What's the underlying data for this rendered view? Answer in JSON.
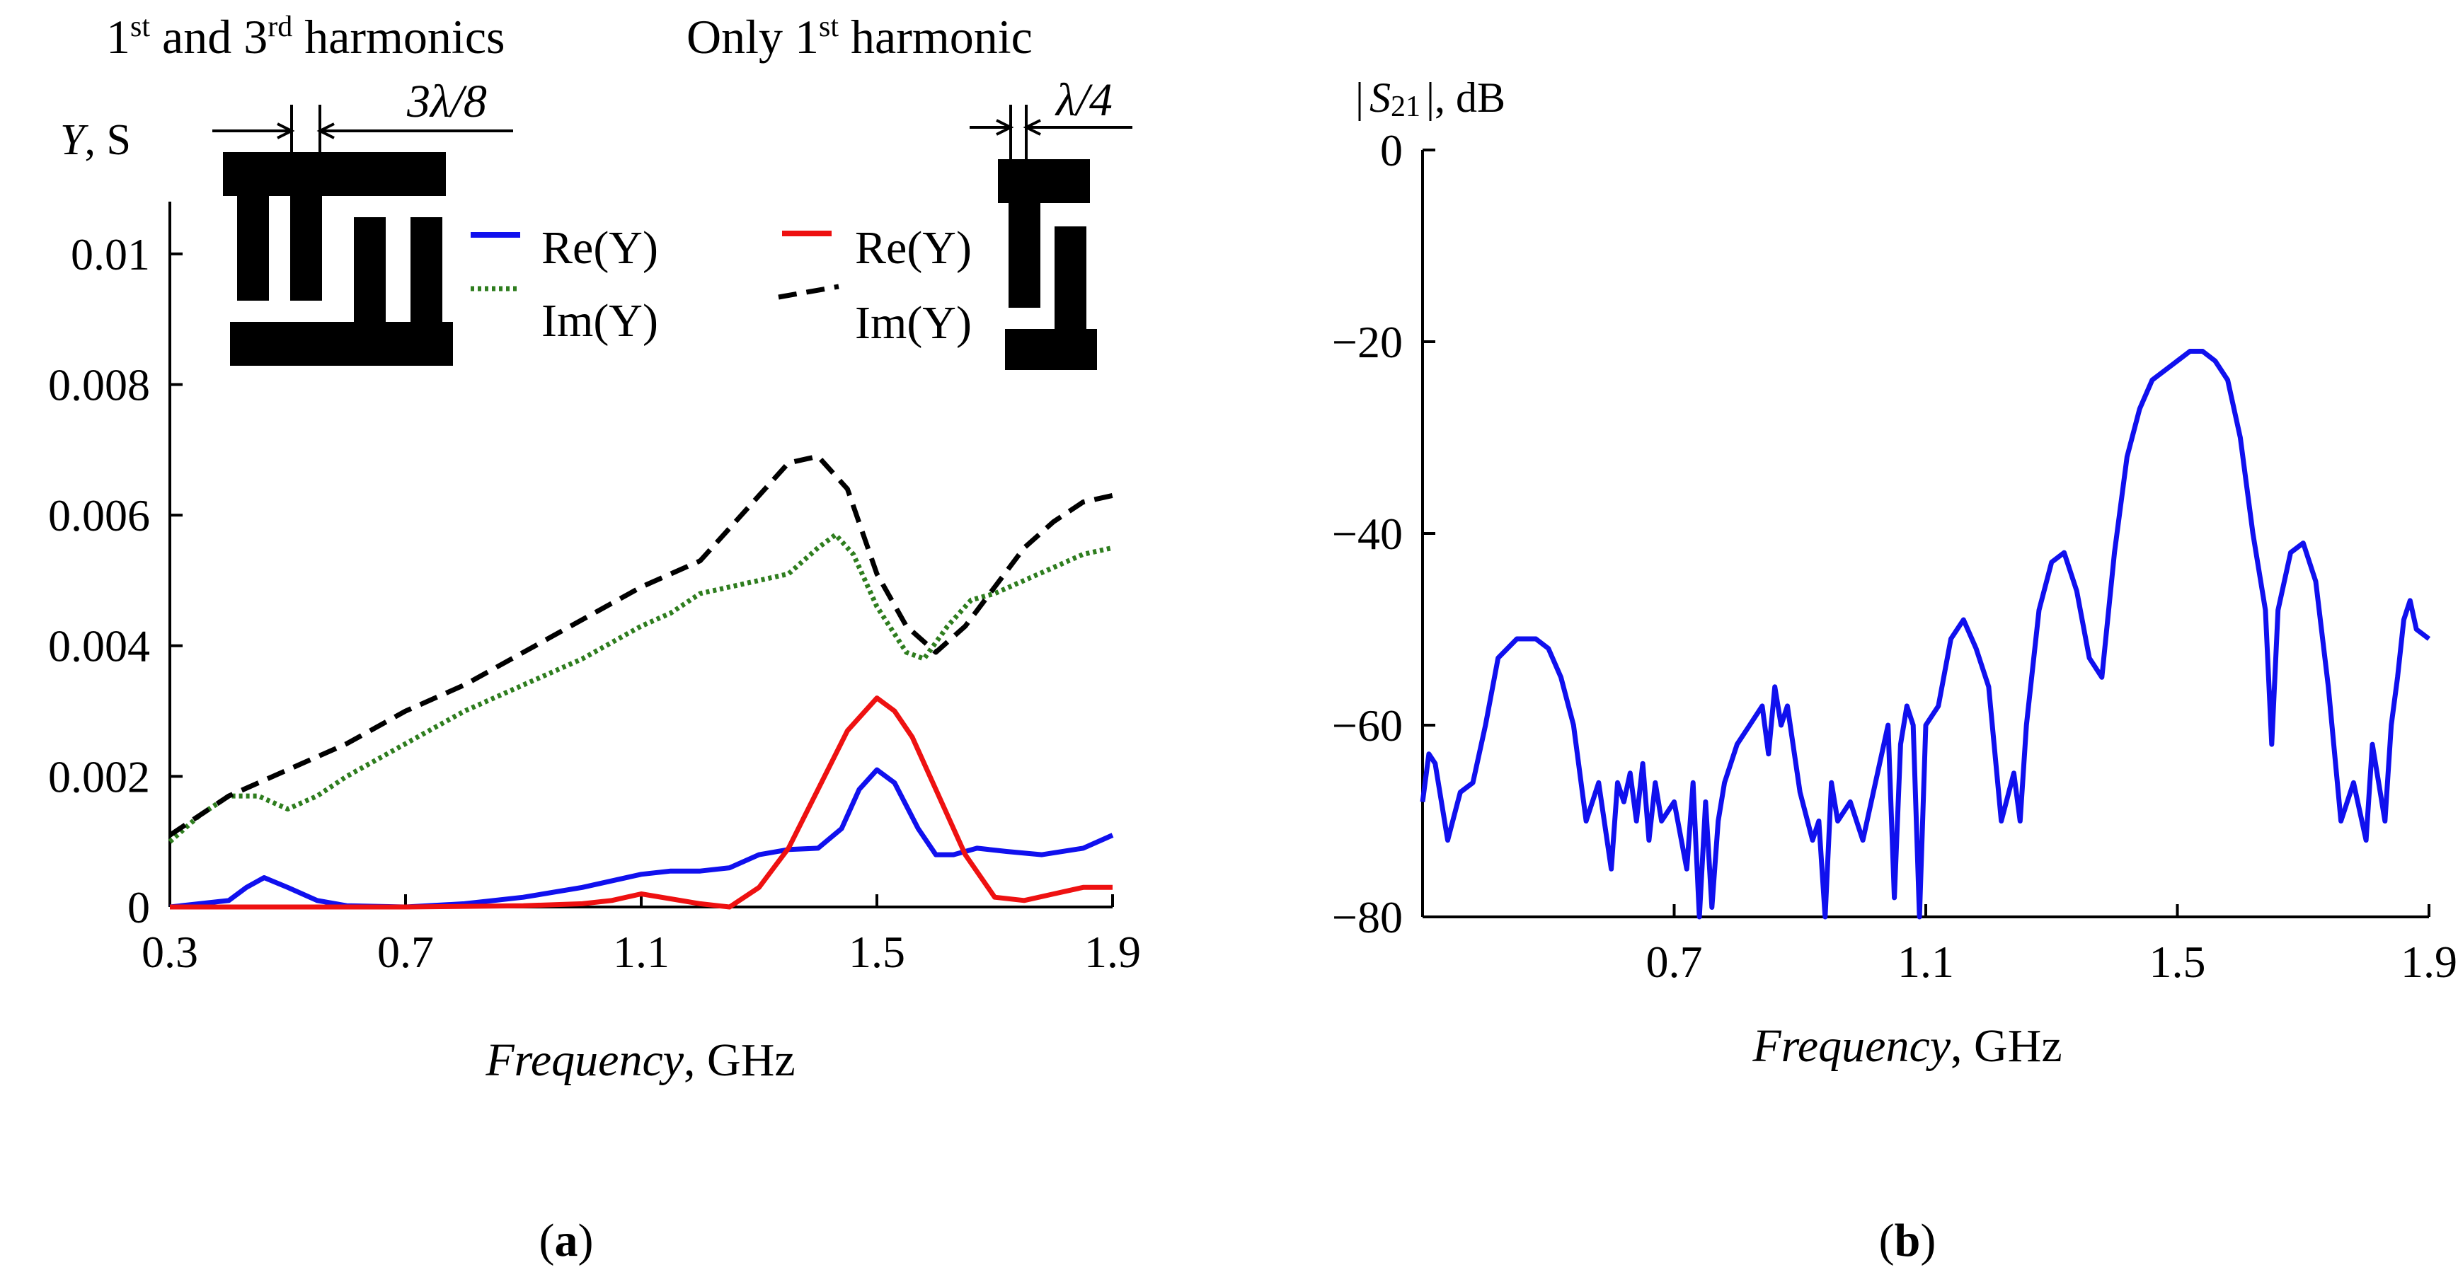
{
  "colors": {
    "re_stripe": "#1010ee",
    "im_stripe": "#2e7d1e",
    "re_quarter": "#ee1111",
    "im_quarter": "#000000",
    "s21": "#1010ee"
  },
  "chart_data": [
    {
      "type": "line",
      "panel_label_open": "(",
      "panel_label": "a",
      "panel_label_close": ")",
      "ylabel_sym": "Y",
      "ylabel_unit": ", S",
      "xlabel_italic": "Frequency",
      "xlabel_unit": ", GHz",
      "xlim": [
        0.3,
        1.9
      ],
      "ylim": [
        0,
        0.0108
      ],
      "xticks": [
        0.3,
        0.7,
        1.1,
        1.5,
        1.9
      ],
      "xtick_labels": [
        "0.3",
        "0.7",
        "1.1",
        "1.5",
        "1.9"
      ],
      "yticks": [
        0,
        0.002,
        0.004,
        0.006,
        0.008,
        0.01
      ],
      "ytick_labels": [
        "0",
        "0.002",
        "0.004",
        "0.006",
        "0.008",
        "0.01"
      ],
      "inset_left": {
        "title_a": "1",
        "title_a_sup": "st",
        "title_b": " and 3",
        "title_b_sup": "rd",
        "title_c": " harmonics",
        "dim_label": "3λ/8"
      },
      "inset_right": {
        "title_a": "Only 1",
        "title_a_sup": "st",
        "title_b": " harmonic",
        "dim_label": "λ/4"
      },
      "legend": [
        {
          "label": "Re(Y)",
          "style": "solid",
          "color_key": "re_stripe"
        },
        {
          "label": "Im(Y)",
          "style": "dotted",
          "color_key": "im_stripe"
        },
        {
          "label": "Re(Y)",
          "style": "solid",
          "color_key": "re_quarter"
        },
        {
          "label": "Im(Y)",
          "style": "dashed",
          "color_key": "im_quarter"
        }
      ],
      "series": [
        {
          "name": "Re(Y) 1st and 3rd harmonics",
          "color_key": "re_stripe",
          "style": "solid",
          "x": [
            0.3,
            0.4,
            0.43,
            0.46,
            0.5,
            0.55,
            0.6,
            0.7,
            0.8,
            0.9,
            1.0,
            1.05,
            1.1,
            1.15,
            1.2,
            1.25,
            1.3,
            1.35,
            1.4,
            1.44,
            1.47,
            1.5,
            1.53,
            1.57,
            1.6,
            1.63,
            1.67,
            1.72,
            1.78,
            1.85,
            1.9
          ],
          "y": [
            0.0,
            0.0001,
            0.0003,
            0.00045,
            0.0003,
            0.0001,
            2e-05,
            0.0,
            5e-05,
            0.00015,
            0.0003,
            0.0004,
            0.0005,
            0.00055,
            0.00055,
            0.0006,
            0.0008,
            0.00088,
            0.0009,
            0.0012,
            0.0018,
            0.0021,
            0.0019,
            0.0012,
            0.0008,
            0.0008,
            0.0009,
            0.00085,
            0.0008,
            0.0009,
            0.0011
          ]
        },
        {
          "name": "Im(Y) 1st and 3rd harmonics",
          "color_key": "im_stripe",
          "style": "dotted",
          "x": [
            0.3,
            0.35,
            0.4,
            0.45,
            0.5,
            0.55,
            0.6,
            0.7,
            0.8,
            0.9,
            1.0,
            1.1,
            1.15,
            1.2,
            1.25,
            1.3,
            1.35,
            1.4,
            1.43,
            1.46,
            1.5,
            1.55,
            1.58,
            1.62,
            1.66,
            1.7,
            1.75,
            1.8,
            1.85,
            1.9
          ],
          "y": [
            0.001,
            0.0014,
            0.0017,
            0.0017,
            0.0015,
            0.0017,
            0.002,
            0.0025,
            0.003,
            0.0034,
            0.0038,
            0.0043,
            0.0045,
            0.0048,
            0.0049,
            0.005,
            0.0051,
            0.0055,
            0.0057,
            0.0054,
            0.0046,
            0.0039,
            0.0038,
            0.0043,
            0.0047,
            0.0048,
            0.005,
            0.0052,
            0.0054,
            0.0055
          ]
        },
        {
          "name": "Re(Y) only 1st harmonic",
          "color_key": "re_quarter",
          "style": "solid",
          "x": [
            0.3,
            0.5,
            0.7,
            0.9,
            1.0,
            1.05,
            1.1,
            1.2,
            1.25,
            1.3,
            1.35,
            1.4,
            1.45,
            1.5,
            1.53,
            1.56,
            1.6,
            1.65,
            1.7,
            1.75,
            1.8,
            1.85,
            1.9
          ],
          "y": [
            0.0,
            0.0,
            0.0,
            2e-05,
            5e-05,
            0.0001,
            0.0002,
            5e-05,
            0.0,
            0.0003,
            0.0009,
            0.0018,
            0.0027,
            0.0032,
            0.003,
            0.0026,
            0.0018,
            0.0008,
            0.00015,
            0.0001,
            0.0002,
            0.0003,
            0.0003
          ]
        },
        {
          "name": "Im(Y) only 1st harmonic",
          "color_key": "im_quarter",
          "style": "dashed",
          "x": [
            0.3,
            0.35,
            0.4,
            0.5,
            0.6,
            0.7,
            0.8,
            0.9,
            1.0,
            1.1,
            1.2,
            1.3,
            1.35,
            1.4,
            1.45,
            1.5,
            1.55,
            1.6,
            1.65,
            1.7,
            1.75,
            1.8,
            1.85,
            1.9
          ],
          "y": [
            0.0011,
            0.0014,
            0.0017,
            0.0021,
            0.0025,
            0.003,
            0.0034,
            0.0039,
            0.0044,
            0.0049,
            0.0053,
            0.0063,
            0.0068,
            0.0069,
            0.0064,
            0.0051,
            0.0043,
            0.0039,
            0.0043,
            0.0049,
            0.0055,
            0.0059,
            0.0062,
            0.0063
          ]
        }
      ]
    },
    {
      "type": "line",
      "panel_label_open": "(",
      "panel_label": "b",
      "panel_label_close": ")",
      "ylabel_pre": "|",
      "ylabel_sym": "S",
      "ylabel_sub": "21",
      "ylabel_post": "|, dB",
      "xlabel_italic": "Frequency",
      "xlabel_unit": ", GHz",
      "xlim": [
        0.3,
        1.9
      ],
      "ylim": [
        -80,
        0
      ],
      "xticks": [
        0.7,
        1.1,
        1.5,
        1.9
      ],
      "xtick_labels": [
        "0.7",
        "1.1",
        "1.5",
        "1.9"
      ],
      "yticks": [
        0,
        -20,
        -40,
        -60,
        -80
      ],
      "ytick_labels": [
        "0",
        "−20",
        "−40",
        "−60",
        "−80"
      ],
      "series": [
        {
          "name": "|S21|",
          "color_key": "s21",
          "style": "solid",
          "x": [
            0.3,
            0.31,
            0.32,
            0.34,
            0.36,
            0.38,
            0.4,
            0.42,
            0.45,
            0.48,
            0.5,
            0.52,
            0.54,
            0.56,
            0.58,
            0.6,
            0.61,
            0.62,
            0.63,
            0.64,
            0.65,
            0.66,
            0.67,
            0.68,
            0.7,
            0.72,
            0.73,
            0.74,
            0.75,
            0.76,
            0.77,
            0.78,
            0.8,
            0.82,
            0.84,
            0.85,
            0.86,
            0.87,
            0.88,
            0.9,
            0.92,
            0.93,
            0.94,
            0.95,
            0.96,
            0.98,
            1.0,
            1.02,
            1.04,
            1.05,
            1.06,
            1.07,
            1.08,
            1.09,
            1.1,
            1.12,
            1.14,
            1.16,
            1.18,
            1.2,
            1.22,
            1.24,
            1.25,
            1.26,
            1.28,
            1.3,
            1.32,
            1.34,
            1.36,
            1.38,
            1.4,
            1.42,
            1.44,
            1.46,
            1.48,
            1.5,
            1.52,
            1.54,
            1.56,
            1.58,
            1.6,
            1.62,
            1.64,
            1.65,
            1.66,
            1.68,
            1.7,
            1.72,
            1.74,
            1.76,
            1.78,
            1.8,
            1.81,
            1.82,
            1.83,
            1.84,
            1.85,
            1.86,
            1.87,
            1.88,
            1.9
          ],
          "y": [
            -68,
            -63,
            -64,
            -72,
            -67,
            -66,
            -60,
            -53,
            -51,
            -51,
            -52,
            -55,
            -60,
            -70,
            -66,
            -75,
            -66,
            -68,
            -65,
            -70,
            -64,
            -72,
            -66,
            -70,
            -68,
            -75,
            -66,
            -80,
            -68,
            -79,
            -70,
            -66,
            -62,
            -60,
            -58,
            -63,
            -56,
            -60,
            -58,
            -67,
            -72,
            -70,
            -80,
            -66,
            -70,
            -68,
            -72,
            -66,
            -60,
            -78,
            -62,
            -58,
            -60,
            -80,
            -60,
            -58,
            -51,
            -49,
            -52,
            -56,
            -70,
            -65,
            -70,
            -60,
            -48,
            -43,
            -42,
            -46,
            -53,
            -55,
            -42,
            -32,
            -27,
            -24,
            -23,
            -22,
            -21,
            -21,
            -22,
            -24,
            -30,
            -40,
            -48,
            -62,
            -48,
            -42,
            -41,
            -45,
            -56,
            -70,
            -66,
            -72,
            -62,
            -66,
            -70,
            -60,
            -55,
            -49,
            -47,
            -50,
            -51
          ]
        }
      ]
    }
  ]
}
